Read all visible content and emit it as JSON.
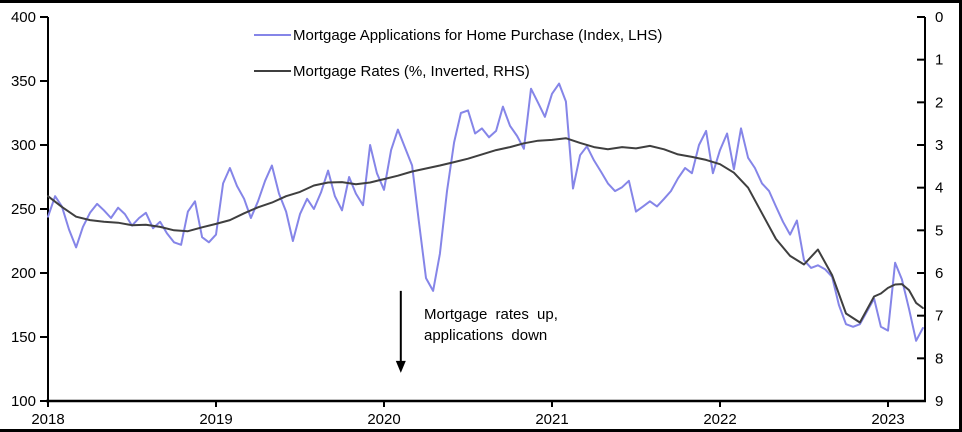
{
  "chart_data": {
    "type": "line",
    "title": "",
    "x_axis": {
      "ticks": [
        2018,
        2019,
        2020,
        2021,
        2022,
        2023
      ],
      "range": [
        2018,
        2023.22
      ]
    },
    "left_axis": {
      "label_values": [
        400,
        350,
        300,
        250,
        200,
        150,
        100
      ],
      "range": [
        100,
        400
      ]
    },
    "right_axis": {
      "label_values": [
        0,
        1,
        2,
        3,
        4,
        5,
        6,
        7,
        8,
        9
      ],
      "range": [
        0,
        9
      ],
      "inverted": true
    },
    "grid": false,
    "legend_position": "top-center",
    "series": [
      {
        "name": "Mortgage Applications for Home Purchase (Index, LHS)",
        "axis": "left",
        "color": "#8585e8",
        "x": [
          2018.0,
          2018.042,
          2018.083,
          2018.125,
          2018.167,
          2018.208,
          2018.25,
          2018.292,
          2018.333,
          2018.375,
          2018.417,
          2018.458,
          2018.5,
          2018.542,
          2018.583,
          2018.625,
          2018.667,
          2018.708,
          2018.75,
          2018.792,
          2018.833,
          2018.875,
          2018.917,
          2018.958,
          2019.0,
          2019.042,
          2019.083,
          2019.125,
          2019.167,
          2019.208,
          2019.25,
          2019.292,
          2019.333,
          2019.375,
          2019.417,
          2019.458,
          2019.5,
          2019.542,
          2019.583,
          2019.625,
          2019.667,
          2019.708,
          2019.75,
          2019.792,
          2019.833,
          2019.875,
          2019.917,
          2019.958,
          2020.0,
          2020.042,
          2020.083,
          2020.125,
          2020.167,
          2020.208,
          2020.25,
          2020.292,
          2020.333,
          2020.375,
          2020.417,
          2020.458,
          2020.5,
          2020.542,
          2020.583,
          2020.625,
          2020.667,
          2020.708,
          2020.75,
          2020.792,
          2020.833,
          2020.875,
          2020.917,
          2020.958,
          2021.0,
          2021.042,
          2021.083,
          2021.125,
          2021.167,
          2021.208,
          2021.25,
          2021.292,
          2021.333,
          2021.375,
          2021.417,
          2021.458,
          2021.5,
          2021.542,
          2021.583,
          2021.625,
          2021.667,
          2021.708,
          2021.75,
          2021.792,
          2021.833,
          2021.875,
          2021.917,
          2021.958,
          2022.0,
          2022.042,
          2022.083,
          2022.125,
          2022.167,
          2022.208,
          2022.25,
          2022.292,
          2022.333,
          2022.375,
          2022.417,
          2022.458,
          2022.5,
          2022.542,
          2022.583,
          2022.625,
          2022.667,
          2022.708,
          2022.75,
          2022.792,
          2022.833,
          2022.875,
          2022.917,
          2022.958,
          2023.0,
          2023.042,
          2023.083,
          2023.125,
          2023.167,
          2023.208
        ],
        "values": [
          244,
          260,
          252,
          234,
          220,
          236,
          247,
          254,
          249,
          243,
          251,
          246,
          237,
          243,
          247,
          235,
          240,
          231,
          224,
          222,
          248,
          256,
          228,
          224,
          230,
          270,
          282,
          268,
          258,
          243,
          256,
          272,
          284,
          262,
          248,
          225,
          246,
          258,
          250,
          263,
          280,
          260,
          249,
          275,
          262,
          253,
          300,
          278,
          265,
          296,
          312,
          298,
          284,
          240,
          196,
          186,
          215,
          264,
          302,
          325,
          327,
          309,
          313,
          306,
          311,
          330,
          315,
          307,
          297,
          344,
          333,
          322,
          340,
          348,
          334,
          266,
          292,
          299,
          288,
          279,
          270,
          264,
          267,
          272,
          248,
          252,
          256,
          252,
          258,
          264,
          274,
          282,
          278,
          300,
          311,
          278,
          296,
          309,
          281,
          313,
          290,
          282,
          270,
          264,
          252,
          240,
          230,
          241,
          210,
          204,
          206,
          203,
          197,
          175,
          160,
          158,
          160,
          170,
          180,
          158,
          155,
          208,
          195,
          172,
          147,
          157
        ]
      },
      {
        "name": "Mortgage Rates (%, Inverted, RHS)",
        "axis": "right",
        "color": "#3f3f3f",
        "x": [
          2018.0,
          2018.083,
          2018.167,
          2018.25,
          2018.333,
          2018.417,
          2018.5,
          2018.583,
          2018.667,
          2018.75,
          2018.833,
          2018.917,
          2019.0,
          2019.083,
          2019.167,
          2019.25,
          2019.333,
          2019.417,
          2019.5,
          2019.583,
          2019.667,
          2019.75,
          2019.833,
          2019.917,
          2020.0,
          2020.083,
          2020.167,
          2020.25,
          2020.333,
          2020.417,
          2020.5,
          2020.583,
          2020.667,
          2020.75,
          2020.833,
          2020.917,
          2021.0,
          2021.083,
          2021.167,
          2021.25,
          2021.333,
          2021.417,
          2021.5,
          2021.583,
          2021.667,
          2021.75,
          2021.833,
          2021.917,
          2022.0,
          2022.083,
          2022.167,
          2022.25,
          2022.333,
          2022.417,
          2022.5,
          2022.583,
          2022.667,
          2022.75,
          2022.833,
          2022.917,
          2022.958,
          2023.0,
          2023.042,
          2023.083,
          2023.125,
          2023.167,
          2023.208
        ],
        "values": [
          4.2,
          4.45,
          4.68,
          4.76,
          4.8,
          4.82,
          4.88,
          4.87,
          4.92,
          5.0,
          5.02,
          4.93,
          4.85,
          4.76,
          4.6,
          4.46,
          4.35,
          4.2,
          4.1,
          3.95,
          3.88,
          3.87,
          3.92,
          3.88,
          3.8,
          3.72,
          3.62,
          3.55,
          3.48,
          3.4,
          3.32,
          3.22,
          3.12,
          3.05,
          2.96,
          2.9,
          2.88,
          2.84,
          2.95,
          3.05,
          3.1,
          3.05,
          3.08,
          3.02,
          3.1,
          3.22,
          3.28,
          3.35,
          3.45,
          3.65,
          4.0,
          4.6,
          5.2,
          5.6,
          5.8,
          5.45,
          6.05,
          6.95,
          7.16,
          6.55,
          6.48,
          6.35,
          6.27,
          6.26,
          6.4,
          6.7,
          6.82
        ]
      }
    ],
    "annotation": {
      "line1": "Mortgage rates up,",
      "line2": "applications down",
      "arrow_x_year": 2020.1,
      "arrow_top_lhs": 186,
      "arrow_tip_lhs": 122
    }
  },
  "colors": {
    "applications_line": "#8585e8",
    "rates_line": "#3f3f3f",
    "axis": "#000000",
    "background": "#ffffff"
  }
}
